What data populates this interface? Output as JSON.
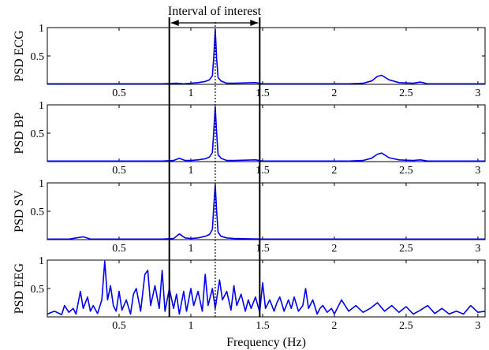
{
  "chart_data": {
    "type": "line",
    "xlabel": "Frequency (Hz)",
    "xlim": [
      0,
      3.05
    ],
    "xticks": [
      0.5,
      1,
      1.5,
      2,
      2.5,
      3
    ],
    "xtick_labels": [
      "0.5",
      "1",
      "1.5",
      "2",
      "2.5",
      "3"
    ],
    "series_color": "#0000ee",
    "annotation": {
      "text": "Interval of interest",
      "x_start": 0.85,
      "x_end": 1.48,
      "center_line_x": 1.17
    },
    "panels": [
      {
        "ylabel": "PSD ECG",
        "ylim": [
          0,
          1
        ],
        "yticks": [
          0.5,
          1
        ],
        "ytick_labels": [
          "0.5",
          "1"
        ],
        "x": [
          0,
          0.2,
          0.5,
          0.8,
          0.9,
          0.95,
          1.0,
          1.05,
          1.1,
          1.13,
          1.15,
          1.16,
          1.17,
          1.18,
          1.19,
          1.21,
          1.25,
          1.3,
          1.45,
          1.5,
          1.8,
          2.1,
          2.2,
          2.26,
          2.3,
          2.33,
          2.38,
          2.45,
          2.55,
          2.6,
          2.65,
          2.8,
          3.05
        ],
        "y": [
          0.01,
          0.01,
          0.01,
          0.01,
          0.02,
          0.01,
          0.02,
          0.03,
          0.05,
          0.08,
          0.15,
          0.5,
          0.97,
          0.45,
          0.12,
          0.06,
          0.02,
          0.02,
          0.03,
          0.01,
          0.01,
          0.01,
          0.02,
          0.06,
          0.14,
          0.16,
          0.08,
          0.03,
          0.02,
          0.04,
          0.01,
          0.01,
          0.01
        ]
      },
      {
        "ylabel": "PSD BP",
        "ylim": [
          0,
          1
        ],
        "yticks": [
          0.5,
          1
        ],
        "ytick_labels": [
          "0.5",
          "1"
        ],
        "x": [
          0,
          0.2,
          0.5,
          0.8,
          0.88,
          0.92,
          0.96,
          1.0,
          1.05,
          1.1,
          1.13,
          1.15,
          1.16,
          1.17,
          1.18,
          1.19,
          1.21,
          1.25,
          1.3,
          1.45,
          1.5,
          1.8,
          2.1,
          2.2,
          2.26,
          2.3,
          2.33,
          2.38,
          2.45,
          2.55,
          2.6,
          2.65,
          2.8,
          3.05
        ],
        "y": [
          0.01,
          0.01,
          0.01,
          0.01,
          0.02,
          0.06,
          0.02,
          0.02,
          0.03,
          0.05,
          0.08,
          0.16,
          0.55,
          0.97,
          0.5,
          0.12,
          0.06,
          0.02,
          0.02,
          0.03,
          0.01,
          0.01,
          0.01,
          0.02,
          0.06,
          0.13,
          0.15,
          0.07,
          0.03,
          0.02,
          0.03,
          0.01,
          0.01,
          0.01
        ]
      },
      {
        "ylabel": "PSD SV",
        "ylim": [
          0,
          1
        ],
        "yticks": [
          0.5,
          1
        ],
        "ytick_labels": [
          "0.5",
          "1"
        ],
        "x": [
          0,
          0.15,
          0.25,
          0.3,
          0.5,
          0.8,
          0.88,
          0.92,
          0.96,
          1.0,
          1.05,
          1.1,
          1.13,
          1.15,
          1.16,
          1.17,
          1.18,
          1.19,
          1.21,
          1.25,
          1.3,
          1.5,
          2.0,
          2.3,
          2.6,
          3.05
        ],
        "y": [
          0.01,
          0.01,
          0.05,
          0.01,
          0.01,
          0.01,
          0.02,
          0.1,
          0.03,
          0.02,
          0.03,
          0.06,
          0.09,
          0.18,
          0.6,
          0.97,
          0.5,
          0.13,
          0.06,
          0.03,
          0.02,
          0.01,
          0.01,
          0.01,
          0.01,
          0.01
        ]
      },
      {
        "ylabel": "PSD EEG",
        "ylim": [
          0,
          1
        ],
        "yticks": [
          0.5,
          1
        ],
        "ytick_labels": [
          "0.5",
          "1"
        ],
        "x": [
          0,
          0.05,
          0.1,
          0.12,
          0.15,
          0.18,
          0.2,
          0.23,
          0.25,
          0.28,
          0.3,
          0.32,
          0.35,
          0.38,
          0.4,
          0.42,
          0.44,
          0.46,
          0.48,
          0.5,
          0.52,
          0.55,
          0.58,
          0.6,
          0.62,
          0.65,
          0.68,
          0.7,
          0.72,
          0.75,
          0.78,
          0.8,
          0.82,
          0.85,
          0.88,
          0.9,
          0.92,
          0.95,
          0.97,
          1.0,
          1.02,
          1.05,
          1.08,
          1.1,
          1.12,
          1.15,
          1.17,
          1.2,
          1.22,
          1.25,
          1.28,
          1.3,
          1.32,
          1.35,
          1.38,
          1.4,
          1.42,
          1.45,
          1.48,
          1.5,
          1.52,
          1.55,
          1.58,
          1.6,
          1.62,
          1.65,
          1.68,
          1.7,
          1.72,
          1.75,
          1.78,
          1.8,
          1.82,
          1.85,
          1.88,
          1.9,
          1.92,
          1.95,
          1.98,
          2.0,
          2.05,
          2.1,
          2.15,
          2.2,
          2.25,
          2.3,
          2.35,
          2.4,
          2.45,
          2.5,
          2.55,
          2.6,
          2.65,
          2.7,
          2.75,
          2.8,
          2.85,
          2.9,
          2.95,
          3.0,
          3.05
        ],
        "y": [
          0.05,
          0.1,
          0.04,
          0.2,
          0.08,
          0.15,
          0.05,
          0.45,
          0.15,
          0.35,
          0.1,
          0.2,
          0.06,
          0.3,
          0.98,
          0.3,
          0.55,
          0.2,
          0.1,
          0.45,
          0.12,
          0.3,
          0.05,
          0.4,
          0.5,
          0.1,
          0.75,
          0.82,
          0.2,
          0.55,
          0.15,
          0.82,
          0.1,
          0.5,
          0.15,
          0.4,
          0.05,
          0.45,
          0.1,
          0.5,
          0.2,
          0.45,
          0.1,
          0.75,
          0.2,
          0.5,
          0.15,
          0.65,
          0.3,
          0.45,
          0.12,
          0.55,
          0.2,
          0.4,
          0.1,
          0.3,
          0.15,
          0.35,
          0.08,
          0.6,
          0.15,
          0.3,
          0.1,
          0.25,
          0.35,
          0.1,
          0.3,
          0.15,
          0.35,
          0.1,
          0.2,
          0.5,
          0.15,
          0.3,
          0.05,
          0.15,
          0.2,
          0.08,
          0.15,
          0.05,
          0.3,
          0.1,
          0.2,
          0.08,
          0.15,
          0.25,
          0.1,
          0.2,
          0.08,
          0.18,
          0.05,
          0.12,
          0.2,
          0.06,
          0.15,
          0.05,
          0.1,
          0.05,
          0.2,
          0.08,
          0.1
        ]
      }
    ]
  }
}
